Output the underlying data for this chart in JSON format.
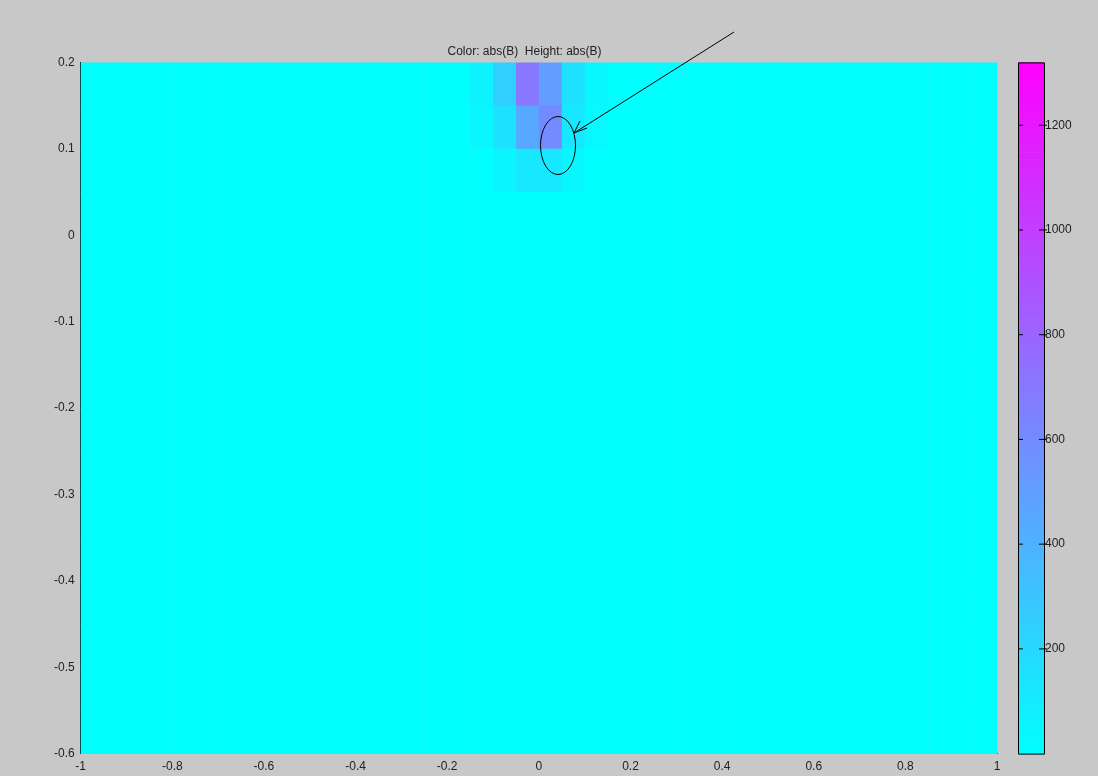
{
  "chart_data": {
    "type": "heatmap",
    "title": "Color: abs(B)  Height: abs(B)",
    "xlim": [
      -1,
      1
    ],
    "xticks": [
      -1,
      -0.8,
      -0.6,
      -0.4,
      -0.2,
      0,
      0.2,
      0.4,
      0.6,
      0.8,
      1
    ],
    "ylim": [
      -0.6,
      0.2
    ],
    "yticks": [
      -0.6,
      -0.5,
      -0.4,
      -0.3,
      -0.2,
      -0.1,
      0,
      0.1,
      0.2
    ],
    "clim": [
      0,
      1320
    ],
    "cticks": [
      200,
      400,
      600,
      800,
      1000,
      1200
    ],
    "cells": [
      [
        0,
        0,
        0,
        0,
        0,
        0,
        0,
        0,
        0,
        0,
        0,
        0,
        0,
        0,
        0,
        0,
        0,
        60,
        250,
        700,
        500,
        150,
        40,
        0,
        0,
        0,
        0,
        0,
        0,
        0,
        0,
        0,
        0,
        0,
        0,
        0,
        0,
        0,
        0,
        0
      ],
      [
        0,
        0,
        0,
        0,
        0,
        0,
        0,
        0,
        0,
        0,
        0,
        0,
        0,
        0,
        0,
        0,
        0,
        40,
        150,
        450,
        600,
        120,
        30,
        0,
        0,
        0,
        0,
        0,
        0,
        0,
        0,
        0,
        0,
        0,
        0,
        0,
        0,
        0,
        0,
        0
      ],
      [
        0,
        0,
        0,
        0,
        0,
        0,
        0,
        0,
        0,
        0,
        0,
        0,
        0,
        0,
        0,
        0,
        0,
        0,
        50,
        120,
        120,
        40,
        0,
        0,
        0,
        0,
        0,
        0,
        0,
        0,
        0,
        0,
        0,
        0,
        0,
        0,
        0,
        0,
        0,
        0
      ],
      [
        0,
        0,
        0,
        0,
        0,
        0,
        0,
        0,
        0,
        0,
        0,
        0,
        0,
        0,
        0,
        0,
        0,
        0,
        0,
        0,
        0,
        0,
        0,
        0,
        0,
        0,
        0,
        0,
        0,
        0,
        0,
        0,
        0,
        0,
        0,
        0,
        0,
        0,
        0,
        0
      ],
      [
        0,
        0,
        0,
        0,
        0,
        0,
        0,
        0,
        0,
        0,
        0,
        0,
        0,
        0,
        0,
        0,
        0,
        0,
        0,
        0,
        0,
        0,
        0,
        0,
        0,
        0,
        0,
        0,
        0,
        0,
        0,
        0,
        0,
        0,
        0,
        0,
        0,
        0,
        0,
        0
      ],
      [
        0,
        0,
        0,
        0,
        0,
        0,
        0,
        0,
        0,
        0,
        0,
        0,
        0,
        0,
        0,
        0,
        0,
        0,
        0,
        0,
        0,
        0,
        0,
        0,
        0,
        0,
        0,
        0,
        0,
        0,
        0,
        0,
        0,
        0,
        0,
        0,
        0,
        0,
        0,
        0
      ],
      [
        0,
        0,
        0,
        0,
        0,
        0,
        0,
        0,
        0,
        0,
        0,
        0,
        0,
        0,
        0,
        0,
        0,
        0,
        0,
        0,
        0,
        0,
        0,
        0,
        0,
        0,
        0,
        0,
        0,
        0,
        0,
        0,
        0,
        0,
        0,
        0,
        0,
        0,
        0,
        0
      ],
      [
        0,
        0,
        0,
        0,
        0,
        0,
        0,
        0,
        0,
        0,
        0,
        0,
        0,
        0,
        0,
        0,
        0,
        0,
        0,
        0,
        0,
        0,
        0,
        0,
        0,
        0,
        0,
        0,
        0,
        0,
        0,
        0,
        0,
        0,
        0,
        0,
        0,
        0,
        0,
        0
      ],
      [
        0,
        0,
        0,
        0,
        0,
        0,
        0,
        0,
        0,
        0,
        0,
        0,
        0,
        0,
        0,
        0,
        0,
        0,
        0,
        0,
        0,
        0,
        0,
        0,
        0,
        0,
        0,
        0,
        0,
        0,
        0,
        0,
        0,
        0,
        0,
        0,
        0,
        0,
        0,
        0
      ],
      [
        0,
        0,
        0,
        0,
        0,
        0,
        0,
        0,
        0,
        0,
        0,
        0,
        0,
        0,
        0,
        0,
        0,
        0,
        0,
        0,
        0,
        0,
        0,
        0,
        0,
        0,
        0,
        0,
        0,
        0,
        0,
        0,
        0,
        0,
        0,
        0,
        0,
        0,
        0,
        0
      ],
      [
        0,
        0,
        0,
        0,
        0,
        0,
        0,
        0,
        0,
        0,
        0,
        0,
        0,
        0,
        0,
        0,
        0,
        0,
        0,
        0,
        0,
        0,
        0,
        0,
        0,
        0,
        0,
        0,
        0,
        0,
        0,
        0,
        0,
        0,
        0,
        0,
        0,
        0,
        0,
        0
      ],
      [
        0,
        0,
        0,
        0,
        0,
        0,
        0,
        0,
        0,
        0,
        0,
        0,
        0,
        0,
        0,
        0,
        0,
        0,
        0,
        0,
        0,
        0,
        0,
        0,
        0,
        0,
        0,
        0,
        0,
        0,
        0,
        0,
        0,
        0,
        0,
        0,
        0,
        0,
        0,
        0
      ],
      [
        0,
        0,
        0,
        0,
        0,
        0,
        0,
        0,
        0,
        0,
        0,
        0,
        0,
        0,
        0,
        0,
        0,
        0,
        0,
        0,
        0,
        0,
        0,
        0,
        0,
        0,
        0,
        0,
        0,
        0,
        0,
        0,
        0,
        0,
        0,
        0,
        0,
        0,
        0,
        0
      ],
      [
        0,
        0,
        0,
        0,
        0,
        0,
        0,
        0,
        0,
        0,
        0,
        0,
        0,
        0,
        0,
        0,
        0,
        0,
        0,
        0,
        0,
        0,
        0,
        0,
        0,
        0,
        0,
        0,
        0,
        0,
        0,
        0,
        0,
        0,
        0,
        0,
        0,
        0,
        0,
        0
      ],
      [
        0,
        0,
        0,
        0,
        0,
        0,
        0,
        0,
        0,
        0,
        0,
        0,
        0,
        0,
        0,
        0,
        0,
        0,
        0,
        0,
        0,
        0,
        0,
        0,
        0,
        0,
        0,
        0,
        0,
        0,
        0,
        0,
        0,
        0,
        0,
        0,
        0,
        0,
        0,
        0
      ],
      [
        0,
        0,
        0,
        0,
        0,
        0,
        0,
        0,
        0,
        0,
        0,
        0,
        0,
        0,
        0,
        0,
        0,
        0,
        0,
        0,
        0,
        0,
        0,
        0,
        0,
        0,
        0,
        0,
        0,
        0,
        0,
        0,
        0,
        0,
        0,
        0,
        0,
        0,
        0,
        0
      ]
    ]
  }
}
